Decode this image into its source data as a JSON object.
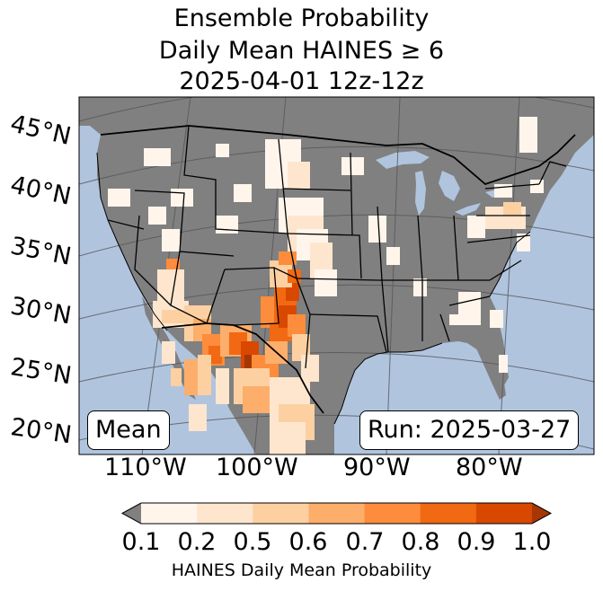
{
  "title": {
    "line1": "Ensemble Probability",
    "line2": "Daily Mean HAINES ≥ 6",
    "line3": "2025-04-01 12z-12z"
  },
  "map": {
    "latitude_labels": [
      "45°N",
      "40°N",
      "35°N",
      "30°N",
      "25°N",
      "20°N"
    ],
    "longitude_labels": [
      "110°W",
      "100°W",
      "90°W",
      "80°W"
    ],
    "mean_label": "Mean",
    "run_label": "Run: 2025-03-27",
    "colors": {
      "ocean": "#b0c4de",
      "land": "#808080",
      "borders": "#000000",
      "graticule": "#555555"
    }
  },
  "colorbar": {
    "tick_labels": [
      "0.1",
      "0.2",
      "0.5",
      "0.6",
      "0.7",
      "0.8",
      "0.9",
      "1.0"
    ],
    "colors": [
      "#fff5eb",
      "#fee6ce",
      "#fdd0a2",
      "#fdae6b",
      "#fd8d3c",
      "#f16913",
      "#d94801",
      "#a63603"
    ],
    "under_color": "#808080",
    "label": "HAINES Daily Mean Probability"
  }
}
